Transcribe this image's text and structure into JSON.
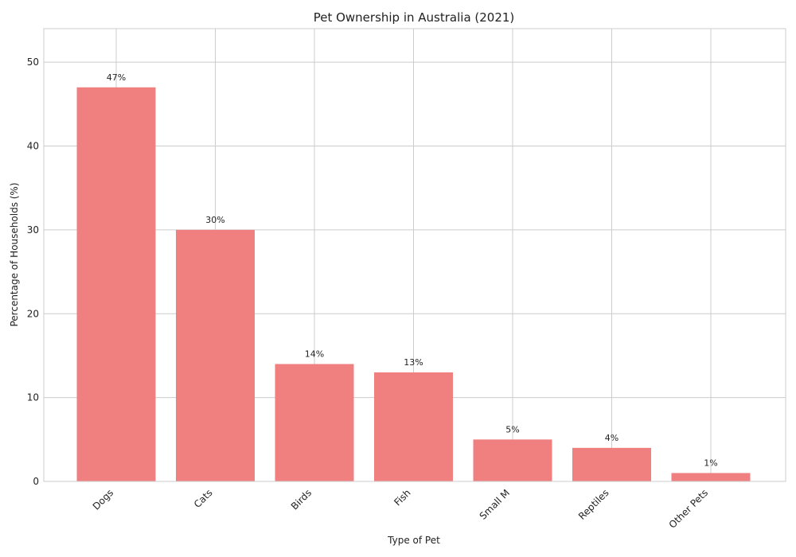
{
  "chart_data": {
    "type": "bar",
    "title": "Pet Ownership in Australia (2021)",
    "xlabel": "Type of Pet",
    "ylabel": "Percentage of Households (%)",
    "categories": [
      "Dogs",
      "Cats",
      "Birds",
      "Fish",
      "Small M",
      "Reptiles",
      "Other Pets"
    ],
    "values": [
      47,
      30,
      14,
      13,
      5,
      4,
      1
    ],
    "data_labels": [
      "47%",
      "30%",
      "14%",
      "13%",
      "5%",
      "4%",
      "1%"
    ],
    "ylim": [
      0,
      54
    ],
    "yticks": [
      0,
      10,
      20,
      30,
      40,
      50
    ],
    "grid": true,
    "bar_color": "#f08080"
  }
}
